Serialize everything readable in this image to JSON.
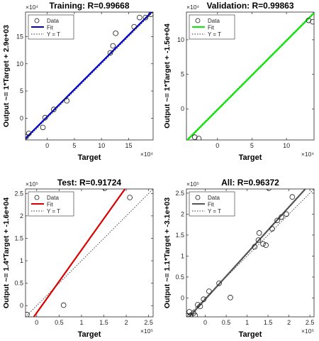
{
  "chart_data": [
    {
      "type": "scatter",
      "title": "Training: R=0.99668",
      "xlabel": "Target",
      "ylabel": "Output ~= 1*Target + 2.9e+03",
      "x_exponent": "×10⁴",
      "y_exponent": "×10⁴",
      "xlim": [
        -4,
        19.5
      ],
      "ylim": [
        -4,
        19.5
      ],
      "xticks": [
        0,
        5,
        10,
        15
      ],
      "yticks": [
        0,
        5,
        10,
        15
      ],
      "legend": [
        "Data",
        "Fit",
        "Y = T"
      ],
      "legend_position": "top-left",
      "fit_color": "#0000cc",
      "fit": {
        "slope": 1,
        "intercept": 0.29
      },
      "points": [
        [
          -3.9,
          -3.4
        ],
        [
          -3.4,
          -2.8
        ],
        [
          -0.8,
          -1.7
        ],
        [
          -0.4,
          0.1
        ],
        [
          1.2,
          1.6
        ],
        [
          3.6,
          3.2
        ],
        [
          11.6,
          12.0
        ],
        [
          12.1,
          13.3
        ],
        [
          12.6,
          15.6
        ],
        [
          16.0,
          16.8
        ],
        [
          17.0,
          18.5
        ],
        [
          18.1,
          18.5
        ],
        [
          19.1,
          19.1
        ]
      ]
    },
    {
      "type": "scatter",
      "title": "Validation: R=0.99863",
      "xlabel": "Target",
      "ylabel": "Output ~= 1*Target + -1.5e+04",
      "x_exponent": "×10⁴",
      "y_exponent": "×10⁴",
      "xlim": [
        -4.5,
        14
      ],
      "ylim": [
        -4.5,
        14
      ],
      "xticks": [
        0,
        5,
        10
      ],
      "yticks": [
        0,
        5,
        10
      ],
      "legend": [
        "Data",
        "Fit",
        "Y = T"
      ],
      "legend_position": "top-left",
      "fit_color": "#00ee00",
      "fit": {
        "slope": 1,
        "intercept": -0.15
      },
      "points": [
        [
          -3.3,
          -4.1
        ],
        [
          -2.7,
          -4.3
        ],
        [
          13.2,
          12.8
        ],
        [
          13.8,
          12.6
        ]
      ]
    },
    {
      "type": "scatter",
      "title": "Test: R=0.91724",
      "xlabel": "Target",
      "ylabel": "Output ~= 1.4*Target + -1.6e+04",
      "x_exponent": "×10⁵",
      "y_exponent": "×10⁵",
      "xlim": [
        -0.25,
        2.6
      ],
      "ylim": [
        -0.25,
        2.6
      ],
      "xticks": [
        0,
        0.5,
        1,
        1.5,
        2,
        2.5
      ],
      "yticks": [
        0,
        0.5,
        1,
        1.5,
        2,
        2.5
      ],
      "legend": [
        "Data",
        "Fit",
        "Y = T"
      ],
      "legend_position": "top-left",
      "fit_color": "#dd0000",
      "fit": {
        "slope": 1.4,
        "intercept": -0.16
      },
      "points": [
        [
          -0.22,
          -0.2
        ],
        [
          0.6,
          0.01
        ],
        [
          1.52,
          2.62
        ],
        [
          2.08,
          2.41
        ]
      ]
    },
    {
      "type": "scatter",
      "title": "All: R=0.96372",
      "xlabel": "Target",
      "ylabel": "Output ~= 1.1*Target + -3.1e+03",
      "x_exponent": "×10⁵",
      "y_exponent": "×10⁵",
      "xlim": [
        -0.45,
        2.6
      ],
      "ylim": [
        -0.45,
        2.6
      ],
      "xticks": [
        0,
        0.5,
        1,
        1.5,
        2,
        2.5
      ],
      "yticks": [
        0,
        0.5,
        1,
        1.5,
        2,
        2.5
      ],
      "legend": [
        "Data",
        "Fit",
        "Y = T"
      ],
      "legend_position": "top-left",
      "fit_color": "#555555",
      "fit": {
        "slope": 1.1,
        "intercept": -0.031
      },
      "points": [
        [
          -0.42,
          -0.43
        ],
        [
          -0.38,
          -0.33
        ],
        [
          -0.36,
          -0.42
        ],
        [
          -0.28,
          -0.36
        ],
        [
          -0.24,
          -0.42
        ],
        [
          -0.18,
          -0.16
        ],
        [
          -0.12,
          -0.2
        ],
        [
          -0.04,
          -0.03
        ],
        [
          0.09,
          0.16
        ],
        [
          0.33,
          0.35
        ],
        [
          0.6,
          0.01
        ],
        [
          1.18,
          1.22
        ],
        [
          1.27,
          1.38
        ],
        [
          1.29,
          1.55
        ],
        [
          1.38,
          1.29
        ],
        [
          1.45,
          1.26
        ],
        [
          1.52,
          2.62
        ],
        [
          1.6,
          1.65
        ],
        [
          1.72,
          1.85
        ],
        [
          1.82,
          1.93
        ],
        [
          1.94,
          2.0
        ],
        [
          2.08,
          2.41
        ]
      ]
    }
  ]
}
